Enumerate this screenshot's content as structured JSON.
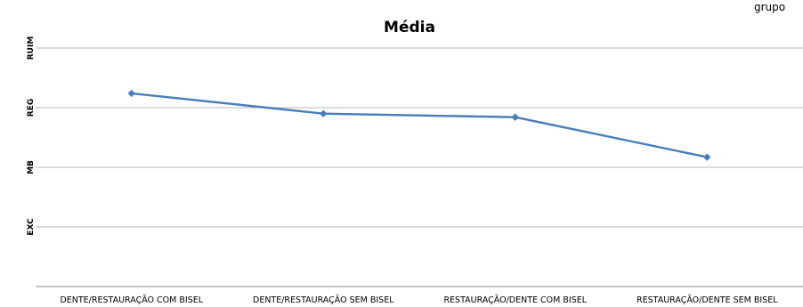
{
  "top_partial_text": "grupo",
  "chart_data": {
    "type": "line",
    "title": "Média",
    "xlabel": "",
    "ylabel": "",
    "y_categories": [
      "EXC",
      "MB",
      "REG",
      "RUIM"
    ],
    "ylim": [
      0,
      4
    ],
    "grid": true,
    "legend": "none",
    "categories": [
      "DENTE/RESTAURAÇÃO COM BISEL",
      "DENTE/RESTAURAÇÃO SEM BISEL",
      "RESTAURAÇÃO/DENTE COM BISEL",
      "RESTAURAÇÃO/DENTE SEM BISEL"
    ],
    "series": [
      {
        "values": [
          3.24,
          2.9,
          2.84,
          2.17
        ]
      }
    ],
    "series_color": "#4a7ebb"
  }
}
